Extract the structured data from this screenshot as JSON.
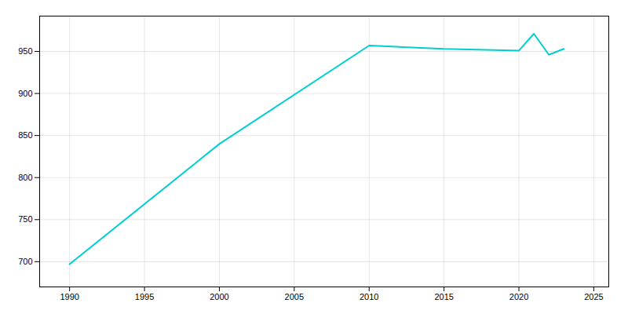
{
  "chart_data": {
    "type": "line",
    "x": [
      1990,
      2000,
      2010,
      2015,
      2020,
      2021,
      2022,
      2023
    ],
    "values": [
      697,
      840,
      957,
      953,
      951,
      971,
      946,
      953
    ],
    "color": "#00CED1",
    "xlim": [
      1988,
      2026
    ],
    "ylim": [
      670,
      992
    ],
    "xticks": [
      1990,
      1995,
      2000,
      2005,
      2010,
      2015,
      2020,
      2025
    ],
    "yticks": [
      700,
      750,
      800,
      850,
      900,
      950
    ],
    "grid": true
  }
}
